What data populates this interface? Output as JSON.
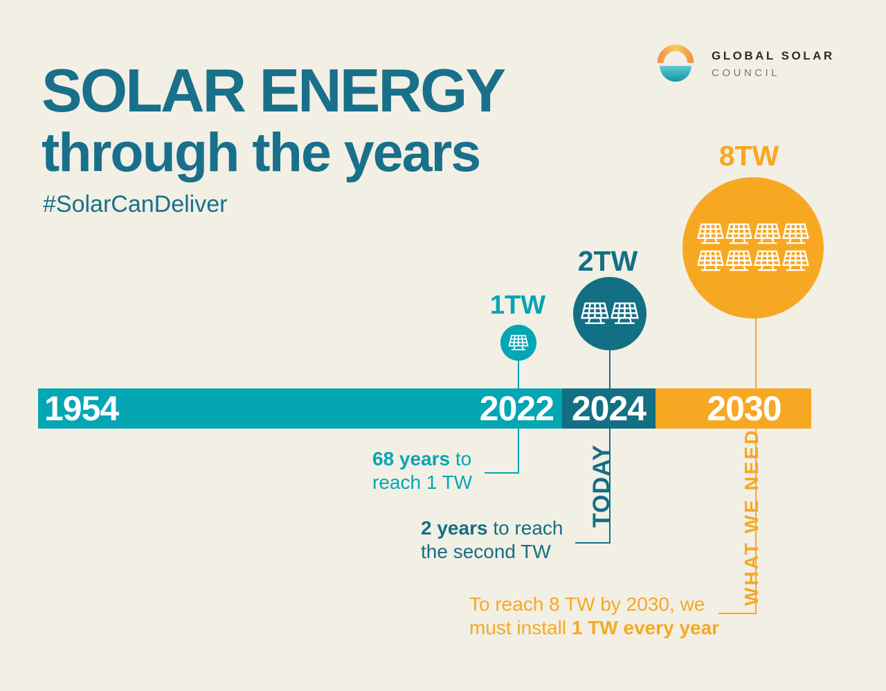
{
  "header": {
    "title_line1": "SOLAR ENERGY",
    "title_line2": "through the years",
    "hashtag": "#SolarCanDeliver"
  },
  "logo": {
    "org_line1": "GLOBAL SOLAR",
    "org_line2": "COUNCIL",
    "mark": "sun-over-sea-icon"
  },
  "colors": {
    "background": "#F2EFE5",
    "teal_light": "#04A6B4",
    "teal_dark": "#136F83",
    "title_teal": "#19708A",
    "orange": "#F7A823",
    "year_text": "#FFFFFF"
  },
  "timeline": {
    "years": {
      "start": "1954",
      "milestone1": "2022",
      "milestone2": "2024",
      "milestone3": "2030"
    }
  },
  "milestones": [
    {
      "label": "1TW",
      "year": "2022",
      "panels": 1,
      "icon": "solar-panel-icon"
    },
    {
      "label": "2TW",
      "year": "2024",
      "panels": 2,
      "icon": "solar-panel-icon"
    },
    {
      "label": "8TW",
      "year": "2030",
      "panels": 8,
      "icon": "solar-panel-icon"
    }
  ],
  "annotations": {
    "first": {
      "bold": "68 years",
      "after_bold": " to",
      "line2": "reach 1 TW"
    },
    "second": {
      "bold": "2 years",
      "after_bold": " to reach",
      "line2": "the second TW"
    },
    "third": {
      "line1": "To reach 8 TW by 2030, we",
      "line2_start": "must install ",
      "line2_bold": "1 TW every year"
    },
    "today": "TODAY",
    "what_we_need": "WHAT WE NEED"
  },
  "chart_data": {
    "type": "timeline",
    "title": "SOLAR ENERGY through the years",
    "points": [
      {
        "year": 1954,
        "note": "timeline start"
      },
      {
        "year": 2022,
        "capacity_tw": 1,
        "note": "68 years to reach 1 TW"
      },
      {
        "year": 2024,
        "capacity_tw": 2,
        "note": "2 years to reach the second TW; TODAY"
      },
      {
        "year": 2030,
        "capacity_tw": 8,
        "note": "WHAT WE NEED: to reach 8 TW by 2030, we must install 1 TW every year"
      }
    ]
  }
}
